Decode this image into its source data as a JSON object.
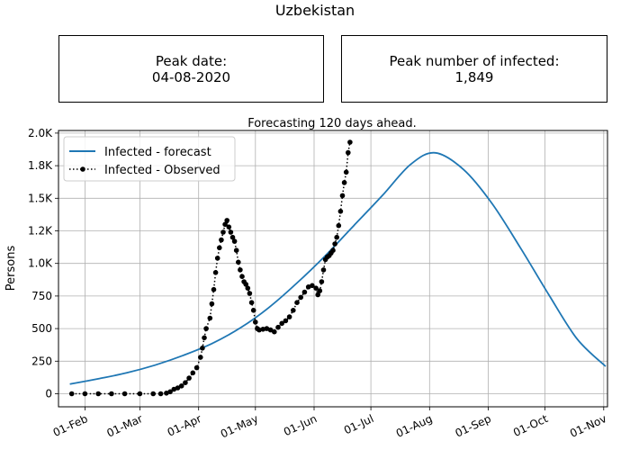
{
  "title": "Uzbekistan",
  "stats": {
    "peak_date_label": "Peak date:",
    "peak_date_value": "04-08-2020",
    "peak_infected_label": "Peak number of infected:",
    "peak_infected_value": "1,849"
  },
  "chart_data": {
    "type": "line",
    "title": "Forecasting 120 days ahead.",
    "xlabel": "",
    "ylabel": "Persons",
    "xlim": [
      "2020-01-18",
      "2020-11-03"
    ],
    "ylim": [
      -100,
      2020
    ],
    "grid": true,
    "legend_position": "upper-left",
    "x_ticks": [
      {
        "date": "2020-02-01",
        "label": "01-Feb"
      },
      {
        "date": "2020-03-01",
        "label": "01-Mar"
      },
      {
        "date": "2020-04-01",
        "label": "01-Apr"
      },
      {
        "date": "2020-05-01",
        "label": "01-May"
      },
      {
        "date": "2020-06-01",
        "label": "01-Jun"
      },
      {
        "date": "2020-07-01",
        "label": "01-Jul"
      },
      {
        "date": "2020-08-01",
        "label": "01-Aug"
      },
      {
        "date": "2020-09-01",
        "label": "01-Sep"
      },
      {
        "date": "2020-10-01",
        "label": "01-Oct"
      },
      {
        "date": "2020-11-01",
        "label": "01-Nov"
      }
    ],
    "y_ticks": [
      {
        "value": 0,
        "label": "0"
      },
      {
        "value": 250,
        "label": "250"
      },
      {
        "value": 500,
        "label": "500"
      },
      {
        "value": 750,
        "label": "750"
      },
      {
        "value": 1000,
        "label": "1.0K"
      },
      {
        "value": 1250,
        "label": "1.2K"
      },
      {
        "value": 1500,
        "label": "1.5K"
      },
      {
        "value": 1750,
        "label": "1.8K"
      },
      {
        "value": 2000,
        "label": "2.0K"
      }
    ],
    "series": [
      {
        "name": "Infected - forecast",
        "color": "#1f77b4",
        "style": "solid",
        "points": [
          [
            "2020-01-24",
            75
          ],
          [
            "2020-02-08",
            115
          ],
          [
            "2020-02-23",
            160
          ],
          [
            "2020-03-09",
            220
          ],
          [
            "2020-03-24",
            295
          ],
          [
            "2020-04-08",
            385
          ],
          [
            "2020-04-23",
            505
          ],
          [
            "2020-05-08",
            660
          ],
          [
            "2020-05-23",
            850
          ],
          [
            "2020-06-07",
            1060
          ],
          [
            "2020-06-22",
            1290
          ],
          [
            "2020-07-07",
            1520
          ],
          [
            "2020-07-22",
            1760
          ],
          [
            "2020-08-04",
            1849
          ],
          [
            "2020-08-19",
            1720
          ],
          [
            "2020-09-03",
            1460
          ],
          [
            "2020-09-18",
            1120
          ],
          [
            "2020-10-03",
            760
          ],
          [
            "2020-10-18",
            420
          ],
          [
            "2020-11-02",
            210
          ]
        ]
      },
      {
        "name": "Infected - Observed",
        "color": "#000000",
        "style": "dotted",
        "marker": "circle",
        "points": [
          [
            "2020-01-25",
            0
          ],
          [
            "2020-02-01",
            0
          ],
          [
            "2020-02-08",
            0
          ],
          [
            "2020-02-15",
            0
          ],
          [
            "2020-02-22",
            0
          ],
          [
            "2020-03-01",
            0
          ],
          [
            "2020-03-08",
            0
          ],
          [
            "2020-03-12",
            0
          ],
          [
            "2020-03-15",
            5
          ],
          [
            "2020-03-17",
            15
          ],
          [
            "2020-03-19",
            35
          ],
          [
            "2020-03-21",
            45
          ],
          [
            "2020-03-23",
            60
          ],
          [
            "2020-03-25",
            85
          ],
          [
            "2020-03-27",
            120
          ],
          [
            "2020-03-29",
            160
          ],
          [
            "2020-03-31",
            200
          ],
          [
            "2020-04-02",
            280
          ],
          [
            "2020-04-03",
            350
          ],
          [
            "2020-04-04",
            430
          ],
          [
            "2020-04-05",
            500
          ],
          [
            "2020-04-07",
            580
          ],
          [
            "2020-04-08",
            690
          ],
          [
            "2020-04-09",
            800
          ],
          [
            "2020-04-10",
            930
          ],
          [
            "2020-04-11",
            1040
          ],
          [
            "2020-04-12",
            1120
          ],
          [
            "2020-04-13",
            1180
          ],
          [
            "2020-04-14",
            1240
          ],
          [
            "2020-04-15",
            1300
          ],
          [
            "2020-04-16",
            1330
          ],
          [
            "2020-04-17",
            1280
          ],
          [
            "2020-04-18",
            1240
          ],
          [
            "2020-04-19",
            1200
          ],
          [
            "2020-04-20",
            1170
          ],
          [
            "2020-04-21",
            1100
          ],
          [
            "2020-04-22",
            1010
          ],
          [
            "2020-04-23",
            950
          ],
          [
            "2020-04-24",
            900
          ],
          [
            "2020-04-25",
            860
          ],
          [
            "2020-04-26",
            840
          ],
          [
            "2020-04-27",
            810
          ],
          [
            "2020-04-28",
            770
          ],
          [
            "2020-04-29",
            700
          ],
          [
            "2020-04-30",
            640
          ],
          [
            "2020-05-01",
            550
          ],
          [
            "2020-05-02",
            500
          ],
          [
            "2020-05-03",
            490
          ],
          [
            "2020-05-05",
            495
          ],
          [
            "2020-05-07",
            500
          ],
          [
            "2020-05-09",
            490
          ],
          [
            "2020-05-11",
            475
          ],
          [
            "2020-05-13",
            510
          ],
          [
            "2020-05-15",
            540
          ],
          [
            "2020-05-17",
            560
          ],
          [
            "2020-05-19",
            590
          ],
          [
            "2020-05-21",
            640
          ],
          [
            "2020-05-23",
            700
          ],
          [
            "2020-05-25",
            740
          ],
          [
            "2020-05-27",
            780
          ],
          [
            "2020-05-29",
            820
          ],
          [
            "2020-05-31",
            830
          ],
          [
            "2020-06-02",
            810
          ],
          [
            "2020-06-03",
            760
          ],
          [
            "2020-06-04",
            790
          ],
          [
            "2020-06-05",
            860
          ],
          [
            "2020-06-06",
            950
          ],
          [
            "2020-06-07",
            1030
          ],
          [
            "2020-06-08",
            1050
          ],
          [
            "2020-06-09",
            1060
          ],
          [
            "2020-06-10",
            1080
          ],
          [
            "2020-06-11",
            1100
          ],
          [
            "2020-06-12",
            1150
          ],
          [
            "2020-06-13",
            1200
          ],
          [
            "2020-06-14",
            1290
          ],
          [
            "2020-06-15",
            1400
          ],
          [
            "2020-06-16",
            1520
          ],
          [
            "2020-06-17",
            1620
          ],
          [
            "2020-06-18",
            1700
          ],
          [
            "2020-06-19",
            1850
          ],
          [
            "2020-06-20",
            1930
          ]
        ]
      }
    ]
  }
}
